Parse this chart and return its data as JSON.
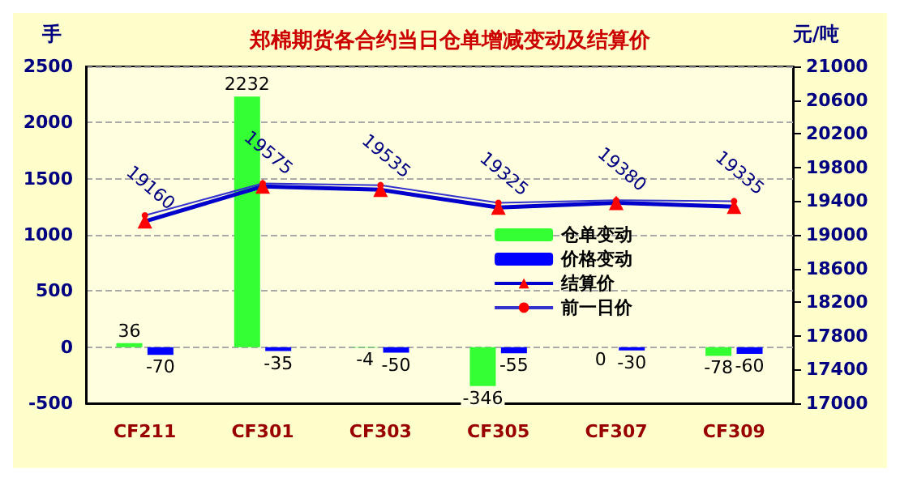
{
  "chart_data": {
    "type": "bar",
    "title": "郑棉期货各合约当日仓单增减变动及结算价",
    "ylabel": "手",
    "y2label": "元/吨",
    "categories": [
      "CF211",
      "CF301",
      "CF303",
      "CF305",
      "CF307",
      "CF309"
    ],
    "series": [
      {
        "name": "仓单变动",
        "color": "#33ff33",
        "values": [
          36,
          2232,
          -4,
          -346,
          0,
          -78
        ]
      },
      {
        "name": "价格变动",
        "color": "#0000ff",
        "values": [
          -70,
          -35,
          -50,
          -55,
          -30,
          -60
        ]
      },
      {
        "name": "结算价",
        "type": "line",
        "axis": "y2",
        "color": "#0000cc",
        "marker": "triangle",
        "values": [
          19160,
          19575,
          19535,
          19325,
          19380,
          19335
        ]
      },
      {
        "name": "前一日价",
        "type": "line",
        "axis": "y2",
        "color": "#3333cc",
        "marker": "circle",
        "data_labels": false,
        "values": [
          19230,
          19610,
          19590,
          19380,
          19410,
          19400
        ]
      }
    ],
    "ylim": [
      -500,
      2500
    ],
    "yticks": [
      -500,
      0,
      500,
      1000,
      1500,
      2000,
      2500
    ],
    "y2lim": [
      17000,
      21000
    ],
    "y2ticks": [
      17000,
      17400,
      17800,
      18200,
      18600,
      19000,
      19400,
      19800,
      20200,
      20600,
      21000
    ],
    "grid": "y",
    "legend": "center right",
    "data_labels": true
  }
}
